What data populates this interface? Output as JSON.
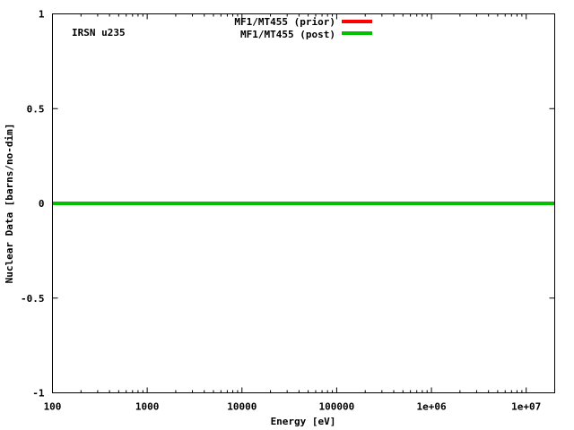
{
  "chart_data": {
    "type": "line",
    "title": "",
    "annotation": "IRSN u235",
    "xlabel": "Energy [eV]",
    "ylabel": "Nuclear Data [barns/no-dim]",
    "xscale": "log",
    "xlim": [
      100,
      20000000
    ],
    "ylim": [
      -1,
      1
    ],
    "x_ticks": [
      100,
      1000,
      10000,
      100000,
      1000000,
      10000000
    ],
    "x_tick_labels": [
      "100",
      "1000",
      "10000",
      "100000",
      "1e+06",
      "1e+07"
    ],
    "y_ticks": [
      -1,
      -0.5,
      0,
      0.5,
      1
    ],
    "y_tick_labels": [
      "-1",
      "-0.5",
      "0",
      "0.5",
      "1"
    ],
    "grid": false,
    "legend_position": "top-center",
    "series": [
      {
        "name": "MF1/MT455 (prior)",
        "color": "#ff0000",
        "x": [
          100,
          20000000
        ],
        "y": [
          0,
          0
        ]
      },
      {
        "name": "MF1/MT455 (post)",
        "color": "#00c000",
        "x": [
          100,
          20000000
        ],
        "y": [
          0,
          0
        ]
      }
    ]
  }
}
